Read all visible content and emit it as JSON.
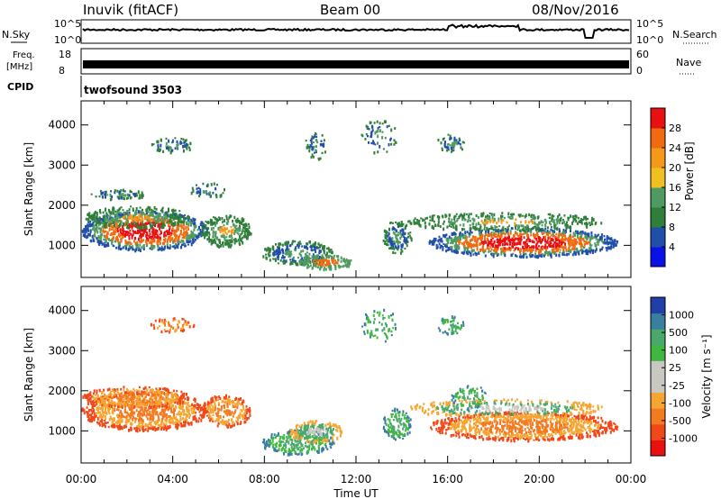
{
  "header": {
    "station": "Inuvik (fitACF)",
    "beam": "Beam 00",
    "date": "08/Nov/2016"
  },
  "aux": {
    "nsky_label": "N.Sky",
    "nsky_ticks": [
      "10^5",
      "10^0"
    ],
    "nsearch_label": "N.Search",
    "nsearch_ticks": [
      "10^5",
      "10^0"
    ],
    "freq_label_1": "Freq.",
    "freq_label_2": "[MHz]",
    "freq_ticks": [
      "18",
      "8"
    ],
    "nave_label": "Nave",
    "nave_ticks": [
      "60",
      "0"
    ],
    "cpid_label": "CPID",
    "cpid_value": "twofsound 3503"
  },
  "colors": {
    "power_scale": [
      "#0a10e8",
      "#1f4fa8",
      "#2f7f3a",
      "#4f9a60",
      "#f0c020",
      "#f59a18",
      "#f06a10",
      "#e81010"
    ],
    "velocity_scale": [
      "#e81010",
      "#f04818",
      "#f47a20",
      "#f6a530",
      "#c8c8c0",
      "#c8c8c0",
      "#40b840",
      "#4aa86a",
      "#3a7fa0",
      "#2040a8"
    ]
  },
  "chart_data": [
    {
      "type": "heatmap",
      "title": "",
      "xlabel": "",
      "ylabel": "Slant Range [km]",
      "x_ticks": [
        "00:00",
        "04:00",
        "08:00",
        "12:00",
        "16:00",
        "20:00",
        "00:00"
      ],
      "y_ticks": [
        1000,
        2000,
        3000,
        4000
      ],
      "ylim": [
        200,
        4600
      ],
      "colorbar_label": "Power [dB]",
      "colorbar_ticks": [
        4,
        8,
        12,
        16,
        20,
        24,
        28
      ],
      "colorbar_range": [
        0,
        32
      ]
    },
    {
      "type": "heatmap",
      "title": "",
      "xlabel": "Time UT",
      "ylabel": "Slant Range [km]",
      "x_ticks": [
        "00:00",
        "04:00",
        "08:00",
        "12:00",
        "16:00",
        "20:00",
        "00:00"
      ],
      "y_ticks": [
        1000,
        2000,
        3000,
        4000
      ],
      "ylim": [
        200,
        4600
      ],
      "colorbar_label": "Velocity [m s⁻¹]",
      "colorbar_ticks": [
        "1000",
        "500",
        "100",
        "25",
        "-25",
        "-100",
        "-500",
        "-1000"
      ]
    }
  ]
}
